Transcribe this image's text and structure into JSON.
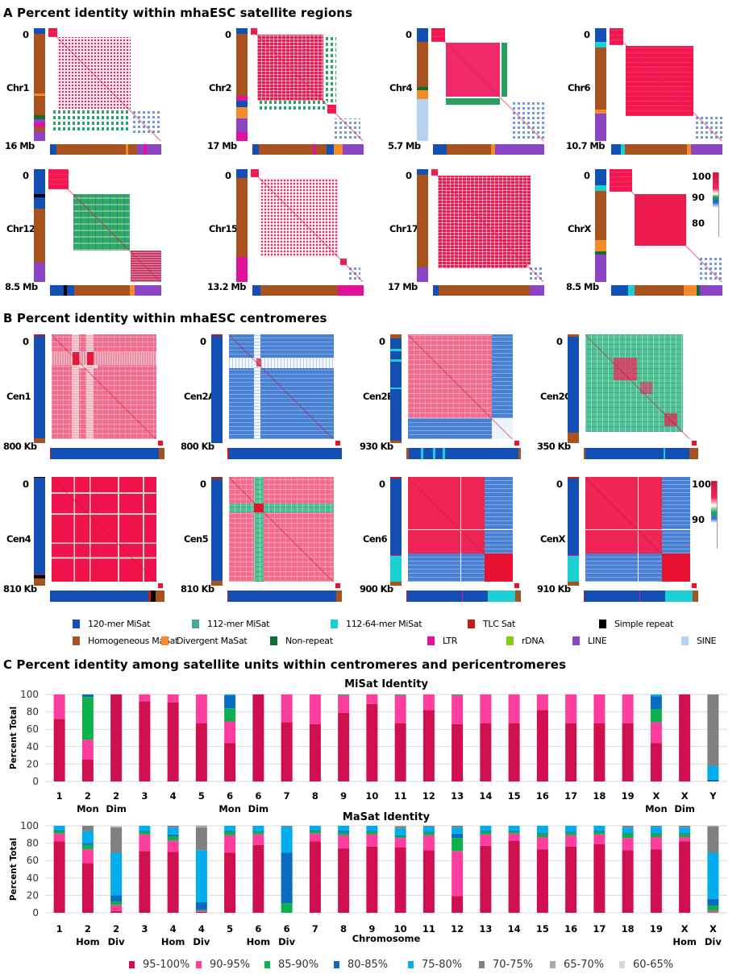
{
  "sectionA": {
    "title": "A Percent identity within mhaESC satellite regions",
    "panels": [
      {
        "label": "Chr1",
        "start": "0",
        "end": "16 Mb"
      },
      {
        "label": "Chr2",
        "start": "0",
        "end": "17 Mb"
      },
      {
        "label": "Chr4",
        "start": "0",
        "end": "5.7 Mb"
      },
      {
        "label": "Chr6",
        "start": "0",
        "end": "10.7 Mb"
      },
      {
        "label": "Chr12",
        "start": "0",
        "end": "8.5 Mb"
      },
      {
        "label": "Chr15",
        "start": "0",
        "end": "13.2 Mb"
      },
      {
        "label": "Chr17",
        "start": "0",
        "end": "17 Mb"
      },
      {
        "label": "ChrX",
        "start": "0",
        "end": "8.5 Mb"
      }
    ],
    "colorbar_ticks": [
      "100",
      "90",
      "80"
    ]
  },
  "sectionB": {
    "title": "B Percent identity within mhaESC centromeres",
    "panels": [
      {
        "label": "Cen1",
        "start": "0",
        "end": "800 Kb"
      },
      {
        "label": "Cen2A",
        "start": "0",
        "end": "800 Kb"
      },
      {
        "label": "Cen2B",
        "start": "0",
        "end": "930 Kb"
      },
      {
        "label": "Cen2C",
        "start": "0",
        "end": "350 Kb"
      },
      {
        "label": "Cen4",
        "start": "0",
        "end": "810 Kb"
      },
      {
        "label": "Cen5",
        "start": "0",
        "end": "810 Kb"
      },
      {
        "label": "Cen6",
        "start": "0",
        "end": "900 Kb"
      },
      {
        "label": "CenX",
        "start": "0",
        "end": "910 Kb"
      }
    ],
    "colorbar_ticks": [
      "100",
      "90"
    ]
  },
  "annotation_legend": [
    {
      "label": "120-mer MiSat",
      "color": "#1450b4"
    },
    {
      "label": "112-mer MiSat",
      "color": "#4aa896"
    },
    {
      "label": "112-64-mer MiSat",
      "color": "#1ccfd2"
    },
    {
      "label": "TLC Sat",
      "color": "#c81a1a"
    },
    {
      "label": "Simple repeat",
      "color": "#000000"
    },
    {
      "label": "Homogeneous MaSat",
      "color": "#a8521e"
    },
    {
      "label": "Divergent MaSat",
      "color": "#f48a2a"
    },
    {
      "label": "Non-repeat",
      "color": "#0e6e36"
    },
    {
      "label": "LTR",
      "color": "#e0129a"
    },
    {
      "label": "rDNA",
      "color": "#86cc14"
    },
    {
      "label": "LINE",
      "color": "#8a44c4"
    },
    {
      "label": "SINE",
      "color": "#b6d4f2"
    }
  ],
  "sectionC": {
    "title": "C Percent identity among satellite units within centromeres and pericentromeres"
  },
  "chart_data": [
    {
      "type": "bar",
      "stacked": true,
      "title": "MiSat Identity",
      "xlabel": "",
      "ylabel": "Percent Total",
      "ylim": [
        0,
        100
      ],
      "yticks": [
        0,
        20,
        40,
        60,
        80,
        100
      ],
      "grid": true,
      "categories": [
        "1",
        "2 Mon",
        "2 Dim",
        "3",
        "4",
        "5",
        "6 Mon",
        "6 Dim",
        "7",
        "8",
        "9",
        "10",
        "11",
        "12",
        "13",
        "14",
        "15",
        "16",
        "17",
        "18",
        "19",
        "X Mon",
        "X Dim",
        "Y"
      ],
      "category_lines": [
        [
          "1",
          ""
        ],
        [
          "2",
          "Mon"
        ],
        [
          "2",
          "Dim"
        ],
        [
          "3",
          ""
        ],
        [
          "4",
          ""
        ],
        [
          "5",
          ""
        ],
        [
          "6",
          "Mon"
        ],
        [
          "6",
          "Dim"
        ],
        [
          "7",
          ""
        ],
        [
          "8",
          ""
        ],
        [
          "9",
          ""
        ],
        [
          "10",
          ""
        ],
        [
          "11",
          ""
        ],
        [
          "12",
          ""
        ],
        [
          "13",
          ""
        ],
        [
          "14",
          ""
        ],
        [
          "15",
          ""
        ],
        [
          "16",
          ""
        ],
        [
          "17",
          ""
        ],
        [
          "18",
          ""
        ],
        [
          "19",
          ""
        ],
        [
          "X",
          "Mon"
        ],
        [
          "X",
          "Dim"
        ],
        [
          "Y",
          ""
        ]
      ],
      "series": [
        {
          "name": "95-100%",
          "values": [
            72,
            25,
            100,
            92,
            91,
            67,
            44,
            100,
            68,
            66,
            79,
            89,
            67,
            82,
            66,
            67,
            67,
            82,
            67,
            67,
            67,
            44,
            100,
            0
          ]
        },
        {
          "name": "90-95%",
          "values": [
            28,
            23,
            0,
            8,
            9,
            33,
            25,
            0,
            32,
            34,
            20,
            11,
            32,
            18,
            33,
            33,
            33,
            18,
            33,
            33,
            33,
            24,
            0,
            0
          ]
        },
        {
          "name": "85-90%",
          "values": [
            0,
            49,
            0,
            0,
            0,
            0,
            15,
            0,
            0,
            0,
            1,
            0,
            1,
            0,
            1,
            0,
            0,
            0,
            0,
            0,
            0,
            15,
            0,
            0
          ]
        },
        {
          "name": "80-85%",
          "values": [
            0,
            3,
            0,
            0,
            0,
            0,
            15,
            0,
            0,
            0,
            0,
            0,
            0,
            0,
            0,
            0,
            0,
            0,
            0,
            0,
            0,
            15,
            0,
            2
          ]
        },
        {
          "name": "75-80%",
          "values": [
            0,
            0,
            0,
            0,
            0,
            0,
            1,
            0,
            0,
            0,
            0,
            0,
            0,
            0,
            0,
            0,
            0,
            0,
            0,
            0,
            0,
            2,
            0,
            16
          ]
        },
        {
          "name": "70-75%",
          "values": [
            0,
            0,
            0,
            0,
            0,
            0,
            0,
            0,
            0,
            0,
            0,
            0,
            0,
            0,
            0,
            0,
            0,
            0,
            0,
            0,
            0,
            0,
            0,
            82
          ]
        },
        {
          "name": "65-70%",
          "values": [
            0,
            0,
            0,
            0,
            0,
            0,
            0,
            0,
            0,
            0,
            0,
            0,
            0,
            0,
            0,
            0,
            0,
            0,
            0,
            0,
            0,
            0,
            0,
            0
          ]
        },
        {
          "name": "60-65%",
          "values": [
            0,
            0,
            0,
            0,
            0,
            0,
            0,
            0,
            0,
            0,
            0,
            0,
            0,
            0,
            0,
            0,
            0,
            0,
            0,
            0,
            0,
            0,
            0,
            0
          ]
        }
      ]
    },
    {
      "type": "bar",
      "stacked": true,
      "title": "MaSat Identity",
      "xlabel": "Chromosome",
      "ylabel": "Percent Total",
      "ylim": [
        0,
        100
      ],
      "yticks": [
        0,
        20,
        40,
        60,
        80,
        100
      ],
      "grid": true,
      "categories": [
        "1",
        "2 Hom",
        "2 Div",
        "3",
        "4 Hom",
        "4 Div",
        "5",
        "6 Hom",
        "6 Div",
        "7",
        "8",
        "9",
        "10",
        "11",
        "12",
        "13",
        "14",
        "15",
        "16",
        "17",
        "18",
        "19",
        "X Hom",
        "X Div"
      ],
      "category_lines": [
        [
          "1",
          ""
        ],
        [
          "2",
          "Hom"
        ],
        [
          "2",
          "Div"
        ],
        [
          "3",
          ""
        ],
        [
          "4",
          "Hom"
        ],
        [
          "4",
          "Div"
        ],
        [
          "5",
          ""
        ],
        [
          "6",
          "Hom"
        ],
        [
          "6",
          "Div"
        ],
        [
          "7",
          ""
        ],
        [
          "8",
          ""
        ],
        [
          "9",
          ""
        ],
        [
          "10",
          ""
        ],
        [
          "11",
          ""
        ],
        [
          "12",
          ""
        ],
        [
          "13",
          ""
        ],
        [
          "14",
          ""
        ],
        [
          "15",
          ""
        ],
        [
          "16",
          ""
        ],
        [
          "17",
          ""
        ],
        [
          "18",
          ""
        ],
        [
          "19",
          ""
        ],
        [
          "X",
          "Hom"
        ],
        [
          "X",
          "Div"
        ]
      ],
      "series": [
        {
          "name": "95-100%",
          "values": [
            82,
            57,
            2,
            71,
            70,
            1,
            69,
            78,
            0,
            82,
            74,
            76,
            75,
            72,
            19,
            77,
            83,
            73,
            76,
            79,
            72,
            73,
            82,
            0
          ]
        },
        {
          "name": "90-95%",
          "values": [
            9,
            16,
            7,
            19,
            13,
            1,
            20,
            12,
            0,
            9,
            15,
            14,
            11,
            17,
            52,
            13,
            8,
            14,
            13,
            11,
            14,
            14,
            5,
            2
          ]
        },
        {
          "name": "85-90%",
          "values": [
            3,
            5,
            4,
            3,
            5,
            1,
            4,
            3,
            11,
            3,
            3,
            3,
            2,
            3,
            15,
            3,
            2,
            4,
            3,
            3,
            5,
            4,
            4,
            6
          ]
        },
        {
          "name": "80-85%",
          "values": [
            1,
            2,
            7,
            1,
            2,
            9,
            1,
            1,
            58,
            1,
            2,
            1,
            1,
            1,
            5,
            1,
            1,
            1,
            1,
            1,
            1,
            1,
            1,
            8
          ]
        },
        {
          "name": "75-80%",
          "values": [
            5,
            14,
            49,
            6,
            8,
            60,
            6,
            6,
            30,
            5,
            6,
            6,
            8,
            6,
            7,
            6,
            6,
            8,
            7,
            6,
            6,
            7,
            6,
            53
          ]
        },
        {
          "name": "70-75%",
          "values": [
            0,
            6,
            29,
            0,
            2,
            26,
            0,
            0,
            1,
            0,
            0,
            0,
            2,
            1,
            2,
            0,
            0,
            0,
            0,
            0,
            2,
            1,
            2,
            30
          ]
        },
        {
          "name": "65-70%",
          "values": [
            0,
            0,
            1,
            0,
            0,
            2,
            0,
            0,
            0,
            0,
            0,
            0,
            1,
            0,
            0,
            0,
            0,
            0,
            0,
            0,
            0,
            0,
            0,
            1
          ]
        },
        {
          "name": "60-65%",
          "values": [
            0,
            0,
            1,
            0,
            0,
            1,
            0,
            0,
            0,
            0,
            0,
            0,
            0,
            0,
            0,
            0,
            0,
            0,
            0,
            0,
            0,
            0,
            0,
            0
          ]
        }
      ]
    }
  ],
  "identity_legend": [
    {
      "label": "95-100%",
      "color": "#cf0f4e"
    },
    {
      "label": "90-95%",
      "color": "#fd3e9e"
    },
    {
      "label": "85-90%",
      "color": "#0db14b"
    },
    {
      "label": "80-85%",
      "color": "#0a6cbf"
    },
    {
      "label": "75-80%",
      "color": "#00aeef"
    },
    {
      "label": "70-75%",
      "color": "#808080"
    },
    {
      "label": "65-70%",
      "color": "#a9a9a9"
    },
    {
      "label": "60-65%",
      "color": "#d9d9d9"
    }
  ]
}
